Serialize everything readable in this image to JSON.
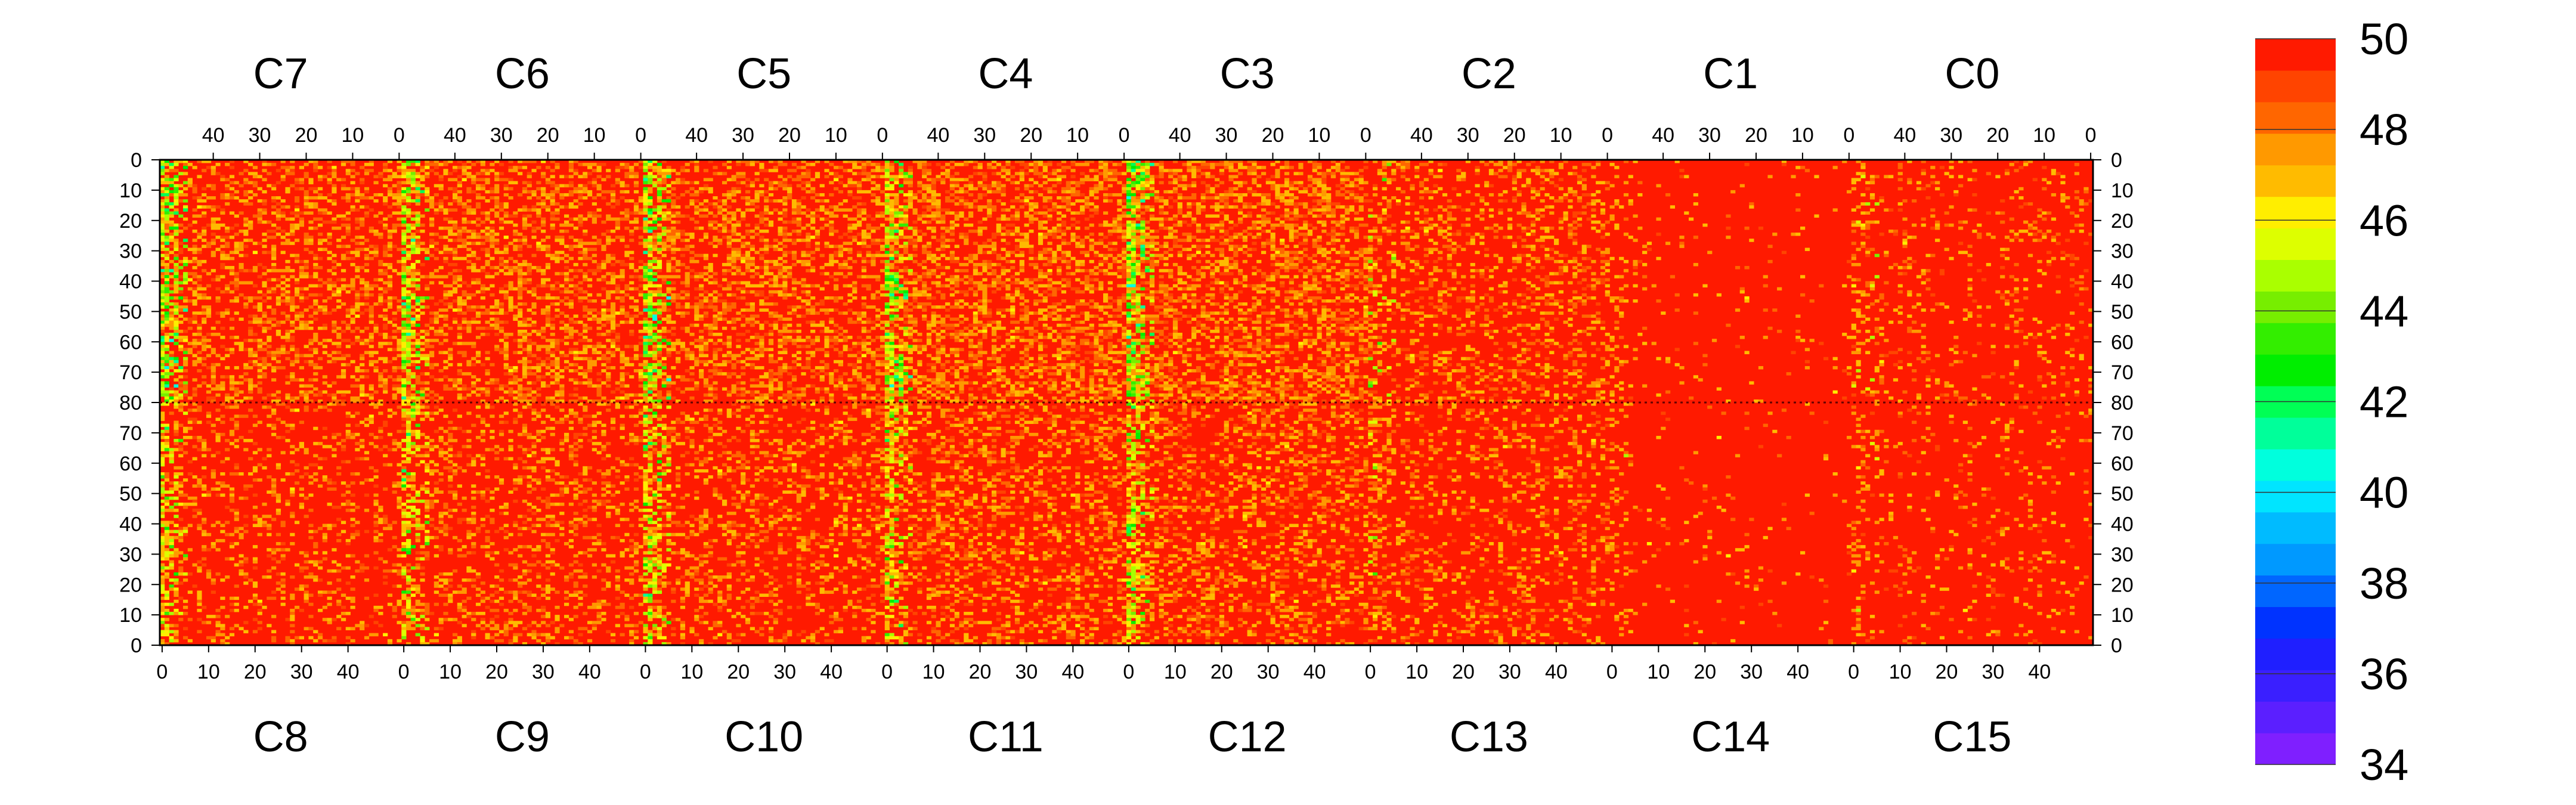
{
  "chart_data": {
    "type": "heatmap",
    "title": "",
    "top_chips": [
      "C7",
      "C6",
      "C5",
      "C4",
      "C3",
      "C2",
      "C1",
      "C0"
    ],
    "bottom_chips": [
      "C8",
      "C9",
      "C10",
      "C11",
      "C12",
      "C13",
      "C14",
      "C15"
    ],
    "top_column_ticks": [
      "40",
      "30",
      "20",
      "10",
      "0"
    ],
    "bottom_column_ticks": [
      "0",
      "10",
      "20",
      "30",
      "40"
    ],
    "top_row_ticks": [
      "0",
      "10",
      "20",
      "30",
      "40",
      "50",
      "60",
      "70",
      "80"
    ],
    "bottom_row_ticks": [
      "70",
      "60",
      "50",
      "40",
      "30",
      "20",
      "10",
      "0"
    ],
    "columns_per_chip": 52,
    "rows_per_half": 80,
    "z_range": [
      34,
      50
    ],
    "colorbar_ticks": [
      "50",
      "48",
      "46",
      "44",
      "42",
      "40",
      "38",
      "36",
      "34"
    ],
    "colorbar_colors": [
      "#7f1fff",
      "#5b1fff",
      "#3a1fff",
      "#1f1fff",
      "#0033ff",
      "#0066ff",
      "#0099ff",
      "#00bbff",
      "#00e5ff",
      "#00ffdd",
      "#00ff9a",
      "#00ff55",
      "#00ee00",
      "#33ee00",
      "#77ee00",
      "#aaff00",
      "#ddff00",
      "#ffee00",
      "#ffbb00",
      "#ff9900",
      "#ff6600",
      "#ff4400",
      "#ff1a00"
    ],
    "background_color": "#ff1a00",
    "hot_columns": [
      {
        "chip": "C7",
        "side": "left",
        "strength": 1.0
      },
      {
        "chip": "C6",
        "side": "left",
        "strength": 0.9
      },
      {
        "chip": "C5",
        "side": "left",
        "strength": 1.0
      },
      {
        "chip": "C4",
        "side": "left",
        "strength": 0.9
      },
      {
        "chip": "C3",
        "side": "left",
        "strength": 1.0
      },
      {
        "chip": "C2",
        "side": "left",
        "strength": 0.3
      },
      {
        "chip": "C1",
        "side": "left",
        "strength": 0.3
      },
      {
        "chip": "C0",
        "side": "left",
        "strength": 0.3
      }
    ],
    "noise_by_chip": {
      "C7": 0.35,
      "C6": 0.4,
      "C5": 0.4,
      "C4": 0.45,
      "C3": 0.45,
      "C2": 0.25,
      "C1": 0.03,
      "C0": 0.12,
      "C8": 0.2,
      "C9": 0.25,
      "C10": 0.25,
      "C11": 0.3,
      "C12": 0.3,
      "C13": 0.2,
      "C14": 0.03,
      "C15": 0.08
    }
  }
}
